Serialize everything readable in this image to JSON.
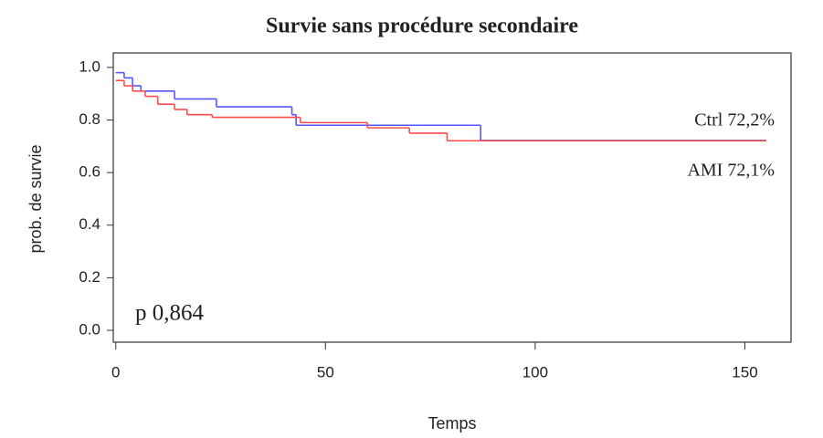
{
  "chart_data": {
    "type": "step",
    "title": "Survie sans procédure secondaire",
    "x_label": "Temps",
    "y_label": "prob. de survie",
    "xlim": [
      -0.6,
      161
    ],
    "ylim": [
      -0.045,
      1.055
    ],
    "xticks": [
      0,
      50,
      100,
      150
    ],
    "yticks": [
      {
        "value": 0,
        "label": "0.0"
      },
      {
        "value": 0.2,
        "label": "0.2"
      },
      {
        "value": 0.4,
        "label": "0.4"
      },
      {
        "value": 0.6,
        "label": "0.6"
      },
      {
        "value": 0.8,
        "label": "0.8"
      },
      {
        "value": 1,
        "label": "1.0"
      }
    ],
    "series": [
      {
        "color": "#5555ff",
        "x": [
          0,
          2,
          4,
          6,
          14,
          24,
          42,
          43,
          87,
          155
        ],
        "values": [
          0.98,
          0.96,
          0.93,
          0.91,
          0.88,
          0.85,
          0.82,
          0.78,
          0.722,
          0.722
        ]
      },
      {
        "color": "#ff4b4b",
        "x": [
          0,
          2,
          4,
          7,
          10,
          14,
          17,
          23,
          44,
          60,
          70,
          79,
          155
        ],
        "values": [
          0.95,
          0.93,
          0.91,
          0.89,
          0.86,
          0.84,
          0.82,
          0.81,
          0.79,
          0.77,
          0.75,
          0.721,
          0.721
        ]
      }
    ],
    "annotations": [
      "Ctrl 72,2%",
      "AMI 72,1%",
      "p 0,864"
    ]
  }
}
